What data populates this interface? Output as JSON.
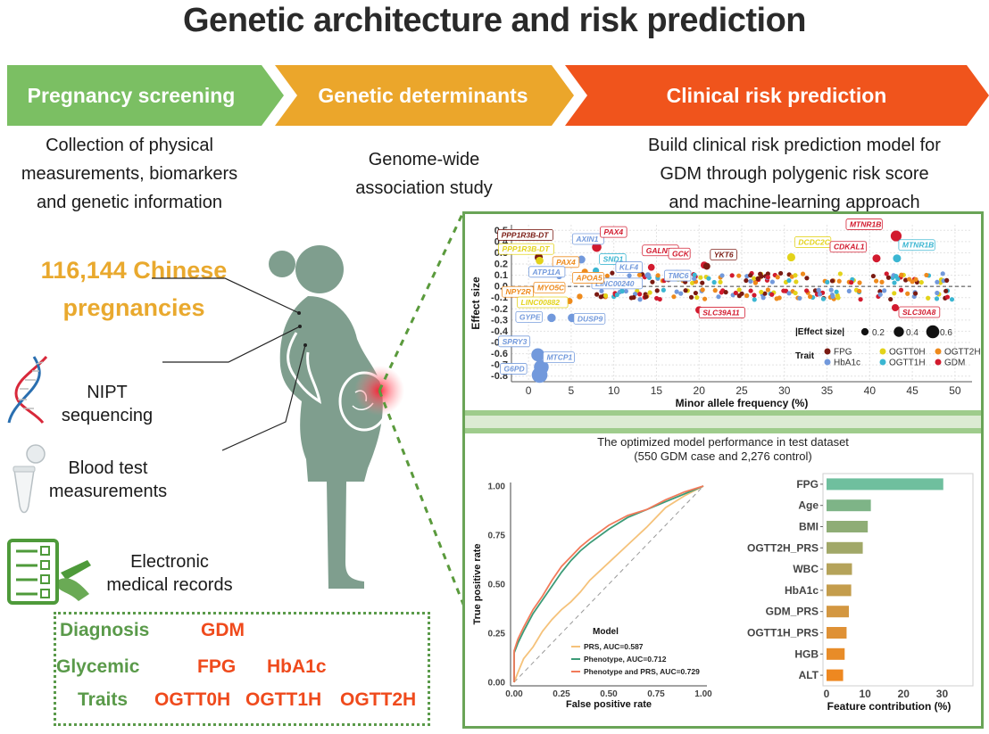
{
  "title": "Genetic architecture and  risk prediction",
  "stages": [
    {
      "label": "Pregnancy screening",
      "color": "#7bbf63"
    },
    {
      "label": "Genetic determinants",
      "color": "#eba62b"
    },
    {
      "label": "Clinical risk prediction",
      "color": "#f0541c"
    }
  ],
  "descriptions": {
    "screening": [
      "Collection of physical",
      "measurements, biomarkers",
      "and genetic information"
    ],
    "genetic": [
      "Genome-wide",
      "association study"
    ],
    "clinical": [
      "Build clinical risk prediction model for",
      "GDM through polygenic risk score",
      "and machine-learning approach"
    ]
  },
  "cohort": [
    "116,144 Chinese",
    "pregnancies"
  ],
  "sources": [
    {
      "icon": "dna-icon",
      "lines": [
        "NIPT",
        "sequencing"
      ]
    },
    {
      "icon": "blood-tube-icon",
      "lines": [
        "Blood test",
        "measurements"
      ]
    },
    {
      "icon": "medical-record-icon",
      "lines": [
        "Electronic",
        "medical records"
      ]
    }
  ],
  "traits_box": {
    "diagnosis_label": "Diagnosis",
    "diagnosis_values": [
      "GDM"
    ],
    "glycemic_label": "Glycemic",
    "traits_label": "Traits",
    "glycemic_values_row1": [
      "FPG",
      "HbA1c"
    ],
    "glycemic_values_row2": [
      "OGTT0H",
      "OGTT1H",
      "OGTT2H"
    ]
  },
  "colors": {
    "FPG": "#7a1a12",
    "HbA1c": "#7299dc",
    "OGTT0H": "#e3d31a",
    "OGTT1H": "#3bb6d2",
    "OGTT2H": "#ee8a1c",
    "GDM": "#d21a2e",
    "panel_border": "#6aa457",
    "figure": "#7f9e8e"
  },
  "chart_data": [
    {
      "type": "scatter",
      "title": "",
      "xlabel": "Minor allele frequency (%)",
      "ylabel": "Effect size",
      "xlim": [
        -2,
        52
      ],
      "ylim": [
        -0.85,
        0.55
      ],
      "xticks": [
        "0",
        "5",
        "10",
        "15",
        "20",
        "25",
        "30",
        "35",
        "40",
        "45",
        "50"
      ],
      "yticks": [
        "0.5",
        "0.4",
        "0.3",
        "0.2",
        "0.1",
        "0.0",
        "-0.1",
        "-0.2",
        "-0.3",
        "-0.4",
        "-0.5",
        "-0.6",
        "-0.7",
        "-0.8"
      ],
      "grid": true,
      "size_legend": {
        "title": "|Effect size|",
        "values": [
          "0.2",
          "0.4",
          "0.6"
        ]
      },
      "trait_legend": {
        "title": "Trait",
        "entries": [
          "FPG",
          "OGTT0H",
          "OGTT2H",
          "HbA1c",
          "OGTT1H",
          "GDM"
        ]
      },
      "labeled_points": [
        {
          "gene": "PPP1R3B-DT",
          "trait": "FPG",
          "x": 1.2,
          "y": 0.26
        },
        {
          "gene": "PPP1R3B-DT",
          "trait": "OGTT0H",
          "x": 1.3,
          "y": 0.23
        },
        {
          "gene": "AXIN1",
          "trait": "HbA1c",
          "x": 6.2,
          "y": 0.24
        },
        {
          "gene": "PAX4",
          "trait": "GDM",
          "x": 8.0,
          "y": 0.35
        },
        {
          "gene": "PAX4",
          "trait": "OGTT2H",
          "x": 6.6,
          "y": 0.13
        },
        {
          "gene": "SND1",
          "trait": "OGTT1H",
          "x": 7.9,
          "y": 0.14
        },
        {
          "gene": "ATP11A",
          "trait": "HbA1c",
          "x": 3.6,
          "y": 0.09
        },
        {
          "gene": "LINC00240",
          "trait": "HbA1c",
          "x": 7.0,
          "y": 0.05
        },
        {
          "gene": "KLF4",
          "trait": "HbA1c",
          "x": 14.0,
          "y": 0.1
        },
        {
          "gene": "GALNT5",
          "trait": "GDM",
          "x": 14.4,
          "y": 0.17
        },
        {
          "gene": "TMC6",
          "trait": "HbA1c",
          "x": 17.4,
          "y": 0.12
        },
        {
          "gene": "GCK",
          "trait": "GDM",
          "x": 20.6,
          "y": 0.19
        },
        {
          "gene": "YKT6",
          "trait": "FPG",
          "x": 20.9,
          "y": 0.18
        },
        {
          "gene": "DCDC2C",
          "trait": "OGTT0H",
          "x": 30.8,
          "y": 0.26
        },
        {
          "gene": "CDKAL1",
          "trait": "GDM",
          "x": 40.8,
          "y": 0.25
        },
        {
          "gene": "MTNR1B",
          "trait": "GDM",
          "x": 43.1,
          "y": 0.45
        },
        {
          "gene": "MTNR1B",
          "trait": "OGTT1H",
          "x": 43.2,
          "y": 0.25
        },
        {
          "gene": "NPY2R",
          "trait": "OGTT2H",
          "x": 1.5,
          "y": -0.12
        },
        {
          "gene": "MYO5C",
          "trait": "OGTT2H",
          "x": 4.8,
          "y": -0.13
        },
        {
          "gene": "APOA5",
          "trait": "OGTT2H",
          "x": 6.0,
          "y": -0.09
        },
        {
          "gene": "LINC00882",
          "trait": "OGTT0H",
          "x": 3.5,
          "y": -0.15
        },
        {
          "gene": "GYPE",
          "trait": "HbA1c",
          "x": 2.7,
          "y": -0.28
        },
        {
          "gene": "DUSP9",
          "trait": "HbA1c",
          "x": 5.1,
          "y": -0.28
        },
        {
          "gene": "SLC39A11",
          "trait": "GDM",
          "x": 20.0,
          "y": -0.21
        },
        {
          "gene": "SLC30A8",
          "trait": "GDM",
          "x": 43.0,
          "y": -0.19
        },
        {
          "gene": "SPRY3",
          "trait": "HbA1c",
          "x": 1.1,
          "y": -0.61
        },
        {
          "gene": "MTCP1",
          "trait": "HbA1c",
          "x": 1.5,
          "y": -0.72
        },
        {
          "gene": "G6PD",
          "trait": "HbA1c",
          "x": 1.3,
          "y": -0.79
        }
      ]
    },
    {
      "type": "line",
      "title": "The optimized model performance in test dataset",
      "subtitle": "(550 GDM case and 2,276 control)",
      "xlabel": "False positive rate",
      "ylabel": "True positive rate",
      "xlim": [
        0,
        1
      ],
      "ylim": [
        0,
        1
      ],
      "xticks": [
        "0.00",
        "0.25",
        "0.50",
        "0.75",
        "1.00"
      ],
      "yticks": [
        "1.00",
        "0.75",
        "0.50",
        "0.25",
        "0.00"
      ],
      "legend_title": "Model",
      "series": [
        {
          "name": "PRS, AUC=0.587",
          "color": "#f5c27a",
          "x": [
            0,
            0.02,
            0.05,
            0.1,
            0.15,
            0.2,
            0.25,
            0.3,
            0.35,
            0.4,
            0.5,
            0.6,
            0.7,
            0.8,
            0.9,
            1.0
          ],
          "y": [
            0,
            0.05,
            0.12,
            0.18,
            0.26,
            0.32,
            0.37,
            0.41,
            0.46,
            0.52,
            0.61,
            0.7,
            0.79,
            0.89,
            0.95,
            1.0
          ]
        },
        {
          "name": "Phenotype, AUC=0.712",
          "color": "#3c9b77",
          "x": [
            0,
            0.0,
            0.02,
            0.05,
            0.1,
            0.15,
            0.2,
            0.25,
            0.3,
            0.35,
            0.4,
            0.5,
            0.6,
            0.7,
            0.8,
            0.9,
            1.0
          ],
          "y": [
            0,
            0.15,
            0.2,
            0.26,
            0.35,
            0.42,
            0.49,
            0.56,
            0.62,
            0.67,
            0.71,
            0.78,
            0.84,
            0.88,
            0.92,
            0.96,
            1.0
          ]
        },
        {
          "name": "Phenotype and PRS, AUC=0.729",
          "color": "#f27a5a",
          "x": [
            0,
            0.0,
            0.02,
            0.05,
            0.1,
            0.15,
            0.2,
            0.25,
            0.3,
            0.35,
            0.4,
            0.5,
            0.6,
            0.7,
            0.8,
            0.9,
            1.0
          ],
          "y": [
            0,
            0.16,
            0.22,
            0.28,
            0.37,
            0.44,
            0.52,
            0.59,
            0.64,
            0.69,
            0.73,
            0.8,
            0.85,
            0.88,
            0.93,
            0.97,
            1.0
          ]
        }
      ]
    },
    {
      "type": "bar",
      "orientation": "horizontal",
      "xlabel": "Feature contribution (%)",
      "xlim": [
        0,
        38
      ],
      "xticks": [
        "0",
        "10",
        "20",
        "30"
      ],
      "categories": [
        "FPG",
        "Age",
        "BMI",
        "OGTT2H_PRS",
        "WBC",
        "HbA1c",
        "GDM_PRS",
        "OGTT1H_PRS",
        "HGB",
        "ALT"
      ],
      "values": [
        30.3,
        11.5,
        10.7,
        9.4,
        6.6,
        6.4,
        5.8,
        5.2,
        4.7,
        4.3
      ],
      "colors": [
        "#6fbf9e",
        "#7eb487",
        "#8fad76",
        "#a1a868",
        "#b5a35a",
        "#c49d4c",
        "#d39741",
        "#df9135",
        "#e88c28",
        "#ee8820"
      ]
    }
  ]
}
